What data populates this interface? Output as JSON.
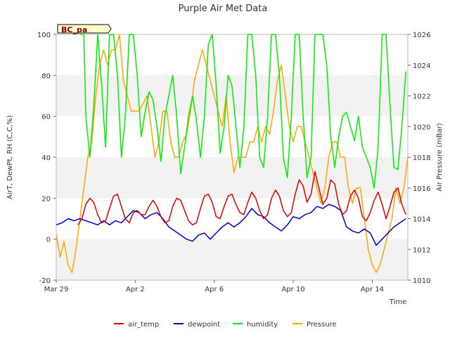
{
  "chart_data": {
    "type": "line",
    "title": "Purple Air Met Data",
    "xlabel": "Time",
    "ylabel_left": "AirT, DewPt, RH (C,C,%)",
    "ylabel_right": "Air Pressure (mBar)",
    "site_label": "BC_pa",
    "x_range_days": [
      0,
      17.8
    ],
    "x_ticks": [
      {
        "day": 0,
        "label": "Mar 29"
      },
      {
        "day": 4,
        "label": "Apr 2"
      },
      {
        "day": 8,
        "label": "Apr 6"
      },
      {
        "day": 12,
        "label": "Apr 10"
      },
      {
        "day": 16,
        "label": "Apr 14"
      }
    ],
    "ylim_left": [
      -20,
      100
    ],
    "yticks_left": [
      "-20",
      "0",
      "20",
      "40",
      "60",
      "80",
      "100"
    ],
    "ylim_right": [
      1010,
      1026
    ],
    "yticks_right": [
      "1010",
      "1012",
      "1014",
      "1016",
      "1018",
      "1020",
      "1022",
      "1024",
      "1026"
    ],
    "grid_bands": true,
    "legend_position": "bottom",
    "series": [
      {
        "name": "air_temp",
        "color": "#dd0000",
        "axis": "left",
        "points": [
          [
            1.1,
            7
          ],
          [
            1.3,
            10
          ],
          [
            1.5,
            17
          ],
          [
            1.7,
            20
          ],
          [
            1.9,
            18
          ],
          [
            2.1,
            12
          ],
          [
            2.3,
            8
          ],
          [
            2.5,
            9
          ],
          [
            2.7,
            15
          ],
          [
            2.9,
            21
          ],
          [
            3.1,
            22
          ],
          [
            3.3,
            16
          ],
          [
            3.5,
            10
          ],
          [
            3.7,
            8
          ],
          [
            3.9,
            13
          ],
          [
            4.1,
            14
          ],
          [
            4.3,
            12
          ],
          [
            4.5,
            12
          ],
          [
            4.7,
            16
          ],
          [
            4.9,
            19
          ],
          [
            5.1,
            16
          ],
          [
            5.3,
            11
          ],
          [
            5.5,
            8
          ],
          [
            5.7,
            9
          ],
          [
            5.9,
            16
          ],
          [
            6.1,
            20
          ],
          [
            6.3,
            19
          ],
          [
            6.5,
            14
          ],
          [
            6.7,
            9
          ],
          [
            6.9,
            7
          ],
          [
            7.1,
            8
          ],
          [
            7.3,
            15
          ],
          [
            7.5,
            21
          ],
          [
            7.7,
            22
          ],
          [
            7.9,
            18
          ],
          [
            8.1,
            11
          ],
          [
            8.3,
            10
          ],
          [
            8.5,
            16
          ],
          [
            8.7,
            21
          ],
          [
            8.9,
            22
          ],
          [
            9.1,
            17
          ],
          [
            9.3,
            13
          ],
          [
            9.5,
            12
          ],
          [
            9.7,
            18
          ],
          [
            9.9,
            23
          ],
          [
            10.1,
            20
          ],
          [
            10.3,
            14
          ],
          [
            10.5,
            10
          ],
          [
            10.7,
            12
          ],
          [
            10.9,
            20
          ],
          [
            11.1,
            24
          ],
          [
            11.3,
            21
          ],
          [
            11.5,
            14
          ],
          [
            11.7,
            11
          ],
          [
            11.9,
            13
          ],
          [
            12.1,
            22
          ],
          [
            12.3,
            29
          ],
          [
            12.5,
            26
          ],
          [
            12.7,
            18
          ],
          [
            12.9,
            22
          ],
          [
            13.1,
            33
          ],
          [
            13.3,
            25
          ],
          [
            13.5,
            17
          ],
          [
            13.7,
            20
          ],
          [
            13.9,
            29
          ],
          [
            14.1,
            27
          ],
          [
            14.3,
            17
          ],
          [
            14.5,
            12
          ],
          [
            14.7,
            14
          ],
          [
            14.9,
            21
          ],
          [
            15.1,
            24
          ],
          [
            15.3,
            20
          ],
          [
            15.5,
            11
          ],
          [
            15.7,
            9
          ],
          [
            15.9,
            13
          ],
          [
            16.1,
            19
          ],
          [
            16.3,
            23
          ],
          [
            16.5,
            17
          ],
          [
            16.7,
            10
          ],
          [
            16.9,
            16
          ],
          [
            17.1,
            23
          ],
          [
            17.3,
            25
          ],
          [
            17.5,
            17
          ],
          [
            17.7,
            12
          ]
        ]
      },
      {
        "name": "dewpoint",
        "color": "#0000cc",
        "axis": "left",
        "points": [
          [
            0,
            7
          ],
          [
            0.3,
            8
          ],
          [
            0.6,
            10
          ],
          [
            0.9,
            9
          ],
          [
            1.2,
            10
          ],
          [
            1.5,
            9
          ],
          [
            1.8,
            8
          ],
          [
            2.1,
            7
          ],
          [
            2.4,
            9
          ],
          [
            2.7,
            7
          ],
          [
            3.0,
            9
          ],
          [
            3.3,
            8
          ],
          [
            3.6,
            11
          ],
          [
            3.9,
            14
          ],
          [
            4.2,
            13
          ],
          [
            4.5,
            10
          ],
          [
            4.8,
            12
          ],
          [
            5.1,
            13
          ],
          [
            5.4,
            10
          ],
          [
            5.7,
            6
          ],
          [
            6.0,
            4
          ],
          [
            6.3,
            2
          ],
          [
            6.6,
            0
          ],
          [
            6.9,
            -1
          ],
          [
            7.2,
            2
          ],
          [
            7.5,
            3
          ],
          [
            7.8,
            0
          ],
          [
            8.1,
            3
          ],
          [
            8.4,
            6
          ],
          [
            8.7,
            8
          ],
          [
            9.0,
            6
          ],
          [
            9.3,
            8
          ],
          [
            9.6,
            11
          ],
          [
            9.9,
            15
          ],
          [
            10.2,
            12
          ],
          [
            10.5,
            11
          ],
          [
            10.8,
            8
          ],
          [
            11.1,
            6
          ],
          [
            11.4,
            4
          ],
          [
            11.7,
            7
          ],
          [
            12.0,
            11
          ],
          [
            12.3,
            10
          ],
          [
            12.6,
            12
          ],
          [
            12.9,
            13
          ],
          [
            13.2,
            16
          ],
          [
            13.5,
            15
          ],
          [
            13.8,
            17
          ],
          [
            14.1,
            16
          ],
          [
            14.4,
            14
          ],
          [
            14.7,
            6
          ],
          [
            15.0,
            4
          ],
          [
            15.3,
            3
          ],
          [
            15.6,
            5
          ],
          [
            15.9,
            3
          ],
          [
            16.2,
            -3
          ],
          [
            16.5,
            0
          ],
          [
            16.8,
            3
          ],
          [
            17.1,
            6
          ],
          [
            17.4,
            8
          ],
          [
            17.7,
            10
          ]
        ]
      },
      {
        "name": "humidity",
        "color": "#00ee00",
        "axis": "left",
        "points": [
          [
            1.2,
            100
          ],
          [
            1.4,
            100
          ],
          [
            1.5,
            60
          ],
          [
            1.7,
            40
          ],
          [
            1.9,
            65
          ],
          [
            2.1,
            100
          ],
          [
            2.3,
            75
          ],
          [
            2.5,
            45
          ],
          [
            2.7,
            100
          ],
          [
            2.9,
            100
          ],
          [
            3.1,
            80
          ],
          [
            3.3,
            40
          ],
          [
            3.5,
            60
          ],
          [
            3.7,
            100
          ],
          [
            3.9,
            100
          ],
          [
            4.1,
            80
          ],
          [
            4.3,
            50
          ],
          [
            4.5,
            62
          ],
          [
            4.7,
            72
          ],
          [
            4.9,
            68
          ],
          [
            5.1,
            55
          ],
          [
            5.3,
            38
          ],
          [
            5.5,
            60
          ],
          [
            5.7,
            70
          ],
          [
            5.9,
            80
          ],
          [
            6.1,
            60
          ],
          [
            6.3,
            32
          ],
          [
            6.5,
            45
          ],
          [
            6.7,
            60
          ],
          [
            6.9,
            70
          ],
          [
            7.1,
            58
          ],
          [
            7.3,
            40
          ],
          [
            7.5,
            60
          ],
          [
            7.7,
            95
          ],
          [
            7.9,
            100
          ],
          [
            8.1,
            75
          ],
          [
            8.3,
            42
          ],
          [
            8.5,
            55
          ],
          [
            8.7,
            80
          ],
          [
            8.9,
            75
          ],
          [
            9.1,
            55
          ],
          [
            9.3,
            35
          ],
          [
            9.5,
            55
          ],
          [
            9.7,
            100
          ],
          [
            9.9,
            100
          ],
          [
            10.1,
            80
          ],
          [
            10.3,
            40
          ],
          [
            10.5,
            35
          ],
          [
            10.7,
            60
          ],
          [
            10.9,
            100
          ],
          [
            11.1,
            100
          ],
          [
            11.3,
            80
          ],
          [
            11.5,
            40
          ],
          [
            11.7,
            30
          ],
          [
            11.9,
            60
          ],
          [
            12.1,
            100
          ],
          [
            12.3,
            100
          ],
          [
            12.5,
            60
          ],
          [
            12.7,
            30
          ],
          [
            12.9,
            40
          ],
          [
            13.1,
            100
          ],
          [
            13.3,
            100
          ],
          [
            13.5,
            100
          ],
          [
            13.7,
            85
          ],
          [
            13.9,
            50
          ],
          [
            14.1,
            35
          ],
          [
            14.3,
            50
          ],
          [
            14.5,
            60
          ],
          [
            14.7,
            62
          ],
          [
            14.9,
            55
          ],
          [
            15.1,
            48
          ],
          [
            15.3,
            60
          ],
          [
            15.5,
            45
          ],
          [
            15.7,
            40
          ],
          [
            15.9,
            35
          ],
          [
            16.1,
            25
          ],
          [
            16.3,
            45
          ],
          [
            16.5,
            100
          ],
          [
            16.7,
            100
          ],
          [
            16.9,
            65
          ],
          [
            17.1,
            35
          ],
          [
            17.3,
            34
          ],
          [
            17.5,
            55
          ],
          [
            17.7,
            82
          ]
        ]
      },
      {
        "name": "Pressure",
        "color": "#ffa500",
        "axis": "right",
        "points": [
          [
            0,
            1013
          ],
          [
            0.2,
            1011.5
          ],
          [
            0.4,
            1012.5
          ],
          [
            0.6,
            1011
          ],
          [
            0.8,
            1010.5
          ],
          [
            1.0,
            1012
          ],
          [
            1.2,
            1014
          ],
          [
            1.4,
            1016
          ],
          [
            1.6,
            1018
          ],
          [
            1.8,
            1019
          ],
          [
            2.0,
            1022
          ],
          [
            2.2,
            1024
          ],
          [
            2.4,
            1025
          ],
          [
            2.6,
            1024
          ],
          [
            2.8,
            1025
          ],
          [
            3.0,
            1025
          ],
          [
            3.2,
            1026
          ],
          [
            3.4,
            1023
          ],
          [
            3.6,
            1022
          ],
          [
            3.8,
            1021
          ],
          [
            4.0,
            1021
          ],
          [
            4.2,
            1021
          ],
          [
            4.4,
            1021.5
          ],
          [
            4.6,
            1022
          ],
          [
            4.8,
            1020
          ],
          [
            5.0,
            1018
          ],
          [
            5.2,
            1019
          ],
          [
            5.4,
            1021
          ],
          [
            5.6,
            1021
          ],
          [
            5.8,
            1019
          ],
          [
            6.0,
            1018
          ],
          [
            6.2,
            1018
          ],
          [
            6.4,
            1019
          ],
          [
            6.6,
            1019.5
          ],
          [
            6.8,
            1021
          ],
          [
            7.0,
            1023
          ],
          [
            7.2,
            1024
          ],
          [
            7.4,
            1025
          ],
          [
            7.6,
            1024
          ],
          [
            7.8,
            1023
          ],
          [
            8.0,
            1022
          ],
          [
            8.2,
            1021
          ],
          [
            8.4,
            1020
          ],
          [
            8.6,
            1022
          ],
          [
            8.8,
            1019
          ],
          [
            9.0,
            1017
          ],
          [
            9.2,
            1018
          ],
          [
            9.4,
            1018
          ],
          [
            9.6,
            1018
          ],
          [
            9.8,
            1019
          ],
          [
            10.0,
            1019
          ],
          [
            10.2,
            1020
          ],
          [
            10.4,
            1019
          ],
          [
            10.6,
            1020
          ],
          [
            10.8,
            1019.5
          ],
          [
            11.0,
            1021
          ],
          [
            11.2,
            1023
          ],
          [
            11.4,
            1024
          ],
          [
            11.6,
            1022
          ],
          [
            11.8,
            1020
          ],
          [
            12.0,
            1019
          ],
          [
            12.2,
            1020
          ],
          [
            12.4,
            1020
          ],
          [
            12.6,
            1019
          ],
          [
            12.8,
            1018
          ],
          [
            13.0,
            1017
          ],
          [
            13.2,
            1016
          ],
          [
            13.4,
            1015
          ],
          [
            13.6,
            1016
          ],
          [
            13.8,
            1018
          ],
          [
            14.0,
            1019
          ],
          [
            14.2,
            1019
          ],
          [
            14.4,
            1018
          ],
          [
            14.6,
            1018
          ],
          [
            14.8,
            1016
          ],
          [
            15.0,
            1015
          ],
          [
            15.2,
            1016
          ],
          [
            15.4,
            1016
          ],
          [
            15.6,
            1014
          ],
          [
            15.8,
            1012
          ],
          [
            16.0,
            1011
          ],
          [
            16.2,
            1010.5
          ],
          [
            16.4,
            1011
          ],
          [
            16.6,
            1012
          ],
          [
            16.8,
            1013
          ],
          [
            17.0,
            1014
          ],
          [
            17.2,
            1016
          ],
          [
            17.4,
            1015
          ],
          [
            17.6,
            1016
          ],
          [
            17.8,
            1018
          ]
        ]
      }
    ]
  }
}
